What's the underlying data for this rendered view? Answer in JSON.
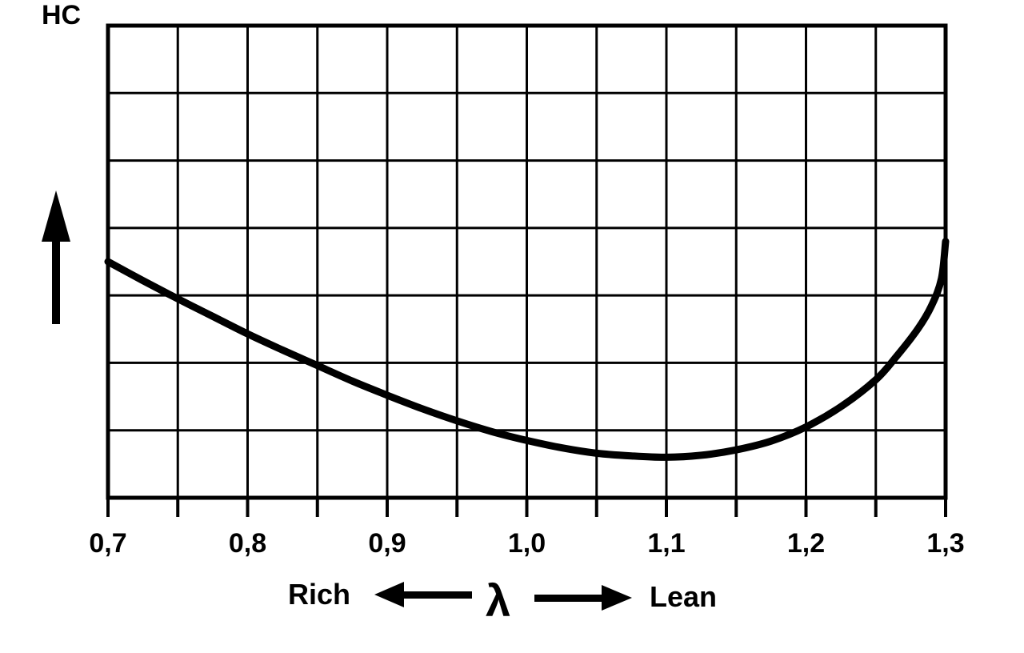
{
  "chart_data": {
    "type": "line",
    "ylabel": "HC",
    "xlabel": "λ",
    "rich_label": "Rich",
    "lean_label": "Lean",
    "xlim": [
      0.7,
      1.3
    ],
    "ylim": [
      0,
      7
    ],
    "x_ticks": [
      "0,7",
      "0,8",
      "0,9",
      "1,0",
      "1,1",
      "1,2",
      "1,3"
    ],
    "x_tick_values": [
      0.7,
      0.8,
      0.9,
      1.0,
      1.1,
      1.2,
      1.3
    ],
    "grid": true,
    "series": [
      {
        "values": [
          [
            0.7,
            3.5
          ],
          [
            0.725,
            3.22
          ],
          [
            0.75,
            2.95
          ],
          [
            0.775,
            2.69
          ],
          [
            0.8,
            2.43
          ],
          [
            0.825,
            2.19
          ],
          [
            0.85,
            1.96
          ],
          [
            0.875,
            1.73
          ],
          [
            0.9,
            1.52
          ],
          [
            0.925,
            1.32
          ],
          [
            0.95,
            1.14
          ],
          [
            0.975,
            0.98
          ],
          [
            1.0,
            0.85
          ],
          [
            1.025,
            0.74
          ],
          [
            1.05,
            0.66
          ],
          [
            1.075,
            0.62
          ],
          [
            1.1,
            0.6
          ],
          [
            1.125,
            0.63
          ],
          [
            1.15,
            0.71
          ],
          [
            1.175,
            0.84
          ],
          [
            1.2,
            1.05
          ],
          [
            1.225,
            1.35
          ],
          [
            1.25,
            1.75
          ],
          [
            1.265,
            2.1
          ],
          [
            1.28,
            2.5
          ],
          [
            1.29,
            2.85
          ],
          [
            1.297,
            3.25
          ],
          [
            1.3,
            3.8
          ]
        ]
      }
    ]
  }
}
